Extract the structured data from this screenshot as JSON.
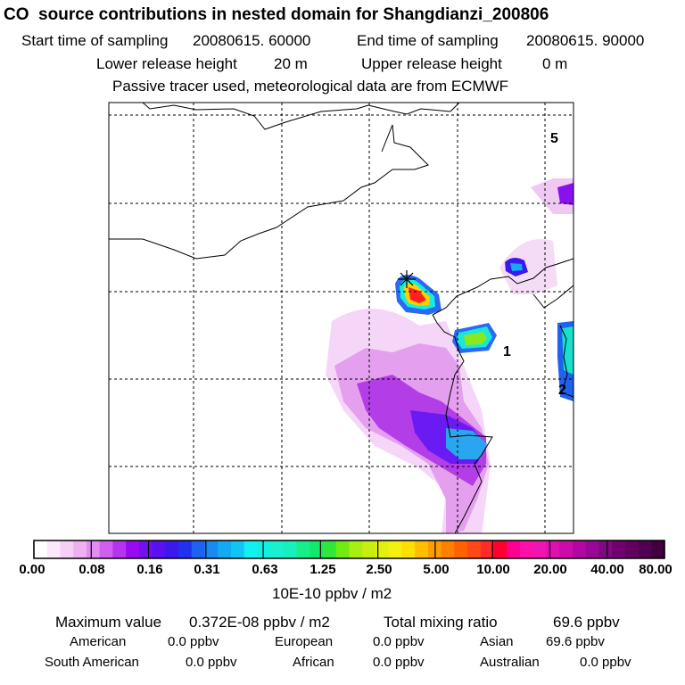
{
  "header": {
    "title": "CO  source contributions in nested domain for Shangdianzi_200806",
    "start_label": "Start time of sampling",
    "start_value": "20080615. 60000",
    "end_label": "End time of sampling",
    "end_value": "20080615. 90000",
    "lower_label": "Lower release height",
    "lower_value": "20 m",
    "upper_label": "Upper release height",
    "upper_value": "0 m",
    "note": "Passive tracer used, meteorological data are from ECMWF"
  },
  "map": {
    "region_labels": [
      "5",
      "1",
      "2"
    ],
    "receptor_marker": "star"
  },
  "colorbar": {
    "ticks": [
      "0.00",
      "0.08",
      "0.16",
      "0.31",
      "0.63",
      "1.25",
      "2.50",
      "5.00",
      "10.00",
      "20.00",
      "40.00",
      "80.00"
    ],
    "unit": "10E-10 ppbv / m2",
    "colors": [
      "#ffffff",
      "#fbe8fb",
      "#f6cff6",
      "#efb0f2",
      "#e18ef0",
      "#cf5fef",
      "#b634ef",
      "#9a0af0",
      "#7410f0",
      "#5a10f0",
      "#3a18ee",
      "#2230f0",
      "#1f62f0",
      "#1a8af0",
      "#12aaf2",
      "#10c4f4",
      "#12f0f0",
      "#14f0e0",
      "#18f0cf",
      "#16f0bc",
      "#16ee88",
      "#14e86c",
      "#30e83a",
      "#70ec10",
      "#a8f010",
      "#c8ee10",
      "#e0f010",
      "#f4f010",
      "#ffe000",
      "#ffbe00",
      "#ff9c00",
      "#ff8000",
      "#ff6000",
      "#ff4818",
      "#ff2a2a",
      "#ff0030",
      "#ff0090",
      "#ff10a8",
      "#f014b0",
      "#e010b0",
      "#cc0ca8",
      "#b008a0",
      "#980894",
      "#800880",
      "#700070",
      "#600060",
      "#500050",
      "#400040"
    ]
  },
  "stats": {
    "max_label": "Maximum value",
    "max_value": "0.372E-08 ppbv / m2",
    "total_label": "Total mixing ratio",
    "total_value": "69.6 ppbv",
    "regions": [
      {
        "name": "American",
        "value": "0.0 ppbv"
      },
      {
        "name": "European",
        "value": "0.0 ppbv"
      },
      {
        "name": "Asian",
        "value": "69.6 ppbv"
      },
      {
        "name": "South American",
        "value": "0.0 ppbv"
      },
      {
        "name": "African",
        "value": "0.0 ppbv"
      },
      {
        "name": "Australian",
        "value": "0.0 ppbv"
      }
    ]
  }
}
